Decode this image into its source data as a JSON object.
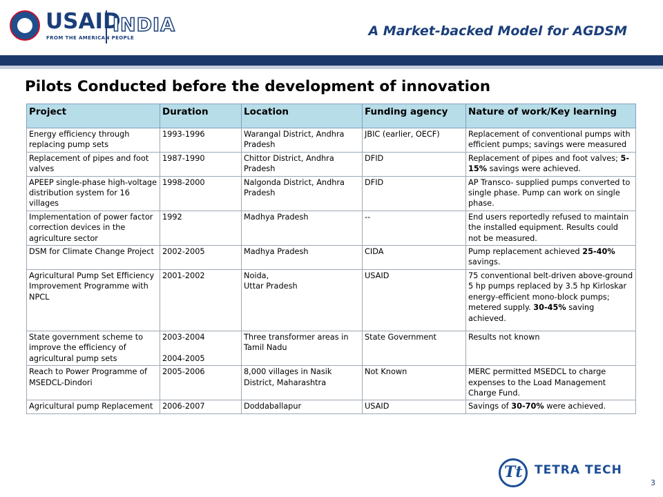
{
  "header": {
    "logo_text": "USAID",
    "logo_tagline": "FROM THE AMERICAN PEOPLE",
    "country": "INDIA",
    "title": "A Market-backed Model for AGDSM"
  },
  "page_title": "Pilots Conducted before the development of innovation",
  "table": {
    "headers": [
      "Project",
      "Duration",
      "Location",
      "Funding agency",
      "Nature of work/Key learning"
    ],
    "rows": [
      {
        "project": "Energy efficiency through replacing pump sets",
        "duration": "1993-1996",
        "location": "Warangal District, Andhra Pradesh",
        "funding": "JBIC (earlier, OECF)",
        "nature": "Replacement of conventional pumps with efficient pumps; savings were measured"
      },
      {
        "project": "Replacement of pipes and foot valves",
        "duration": "1987-1990",
        "location": "Chittor District, Andhra Pradesh",
        "funding": "DFID",
        "nature_pre": "Replacement of pipes and foot valves; ",
        "nature_bold": "5-15%",
        "nature_post": " savings were achieved."
      },
      {
        "project": "APEEP single-phase high-voltage distribution system for 16 villages",
        "duration": "1998-2000",
        "location": "Nalgonda District, Andhra Pradesh",
        "funding": "DFID",
        "nature": "AP Transco- supplied pumps converted to single phase. Pump can work on single phase."
      },
      {
        "project": "Implementation of power factor correction devices in the agriculture sector",
        "duration": "1992",
        "location": "Madhya Pradesh",
        "funding": "--",
        "nature": "End users reportedly refused to maintain the installed equipment. Results could not be measured."
      },
      {
        "project": "DSM for Climate Change Project",
        "duration": "2002-2005",
        "location": "Madhya Pradesh",
        "funding": "CIDA",
        "nature_pre": "Pump replacement achieved ",
        "nature_bold": "25-40%",
        "nature_post": " savings."
      },
      {
        "project": "Agricultural Pump Set Efficiency Improvement Programme with NPCL",
        "duration": "2001-2002",
        "location_line1": "Noida,",
        "location_line2": "Uttar Pradesh",
        "funding": "USAID",
        "nature_pre": "75 conventional belt-driven above-ground 5 hp pumps replaced by 3.5 hp Kirloskar energy-efficient mono-block pumps; metered supply. ",
        "nature_bold": "30-45%",
        "nature_post": " saving achieved."
      },
      {
        "project": "State government scheme to improve the efficiency of agricultural pump sets",
        "duration_1": "2003-2004",
        "duration_2": "2004-2005",
        "location": "Three transformer areas in Tamil Nadu",
        "funding": "State Government",
        "nature": "Results not known"
      },
      {
        "project": "Reach to Power Programme of MSEDCL-Dindori",
        "duration": "2005-2006",
        "location": "8,000 villages in Nasik District, Maharashtra",
        "funding": "Not Known",
        "nature": "MERC permitted MSEDCL to charge expenses to the Load Management Charge Fund."
      },
      {
        "project": "Agricultural pump Replacement",
        "duration": "2006-2007",
        "location": "Doddaballapur",
        "funding": "USAID",
        "nature_pre": "Savings of ",
        "nature_bold": "30-70%",
        "nature_post": " were achieved."
      }
    ]
  },
  "footer": {
    "logo_mark": "Tt",
    "company": "TETRA TECH",
    "page_number": "3"
  },
  "colors": {
    "navy": "#1b3a6b",
    "brand_blue": "#1a3e7a",
    "header_fill": "#b7dde8"
  }
}
